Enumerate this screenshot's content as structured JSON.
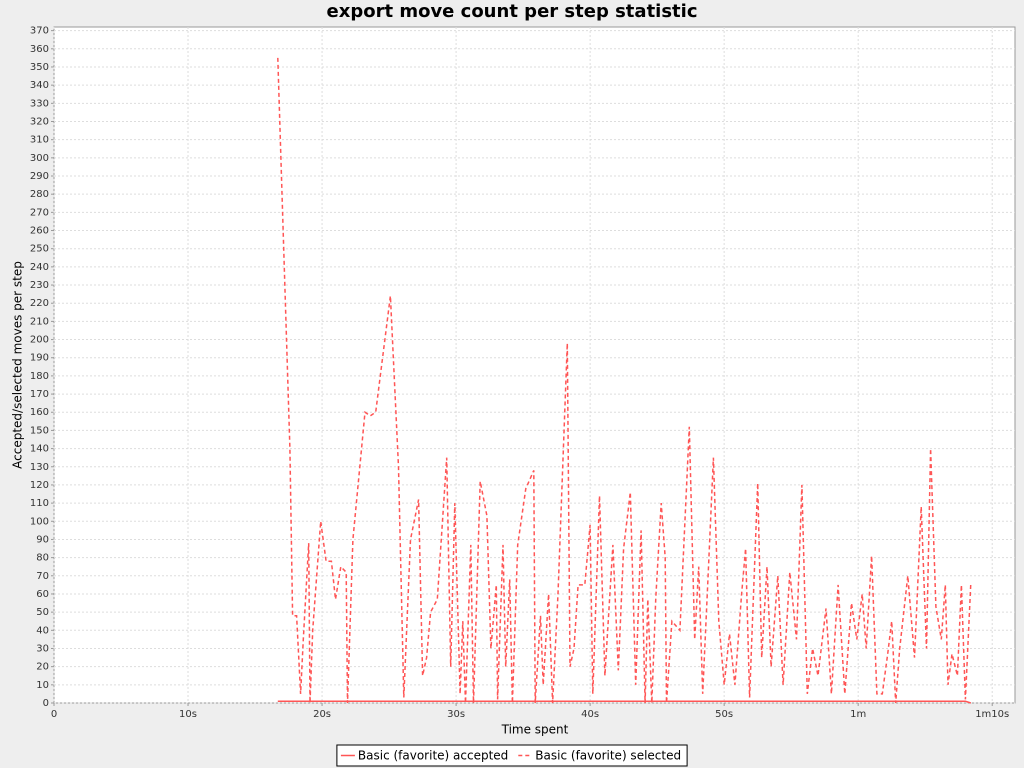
{
  "chart_data": {
    "type": "line",
    "title": "export move count per step statistic",
    "x_label": "Time spent",
    "y_label": "Accepted/selected moves per step",
    "xlim": [
      0,
      71.7
    ],
    "ylim": [
      0,
      372
    ],
    "xticks": [
      0,
      {
        "value": 10,
        "label": "10s"
      },
      {
        "value": 20,
        "label": "20s"
      },
      {
        "value": 30,
        "label": "30s"
      },
      {
        "value": 40,
        "label": "40s"
      },
      {
        "value": 50,
        "label": "50s"
      },
      {
        "value": 60,
        "label": "1m"
      },
      {
        "value": 70,
        "label": "1m10s"
      }
    ],
    "yticks": [
      0,
      10,
      20,
      30,
      40,
      50,
      60,
      70,
      80,
      90,
      100,
      110,
      120,
      130,
      140,
      150,
      160,
      170,
      180,
      190,
      200,
      210,
      220,
      230,
      240,
      250,
      260,
      270,
      280,
      290,
      300,
      310,
      320,
      330,
      340,
      350,
      360,
      370
    ],
    "grid": true,
    "legend": "bottom",
    "series": [
      {
        "name": "Basic (favorite) accepted",
        "color": "#ff5555",
        "line_style": "solid",
        "x": [
          16.7,
          68.0,
          68.4
        ],
        "values": [
          1,
          1,
          0
        ]
      },
      {
        "name": "Basic (favorite) selected",
        "color": "#ff5555",
        "line_style": "dashed",
        "x": [
          16.7,
          17.6,
          17.8,
          18.1,
          18.4,
          18.6,
          19.0,
          19.1,
          19.3,
          19.9,
          20.3,
          20.7,
          21.0,
          21.4,
          21.8,
          21.9,
          22.3,
          23.2,
          23.6,
          24.0,
          25.1,
          25.7,
          26.1,
          26.6,
          27.2,
          27.5,
          27.8,
          28.1,
          28.6,
          29.3,
          29.6,
          29.9,
          30.3,
          30.5,
          30.7,
          31.1,
          31.3,
          31.8,
          32.3,
          32.6,
          33.0,
          33.1,
          33.5,
          33.7,
          34.0,
          34.2,
          34.6,
          35.2,
          35.8,
          35.9,
          36.3,
          36.5,
          36.9,
          37.2,
          37.6,
          38.3,
          38.5,
          38.8,
          39.1,
          39.6,
          40.0,
          40.2,
          40.7,
          41.1,
          41.7,
          42.1,
          42.5,
          43.0,
          43.4,
          43.8,
          44.1,
          44.3,
          44.6,
          44.9,
          45.3,
          45.6,
          45.7,
          46.1,
          46.7,
          47.4,
          47.8,
          48.1,
          48.4,
          48.8,
          49.2,
          49.6,
          50.0,
          50.4,
          50.8,
          51.3,
          51.6,
          51.9,
          52.5,
          52.8,
          53.2,
          53.5,
          54.0,
          54.4,
          54.9,
          55.4,
          55.8,
          56.2,
          56.6,
          57.0,
          57.6,
          58.0,
          58.5,
          59.0,
          59.5,
          59.9,
          60.3,
          60.6,
          61.0,
          61.4,
          61.8,
          62.2,
          62.5,
          62.8,
          63.1,
          63.7,
          64.2,
          64.7,
          65.1,
          65.4,
          65.8,
          66.2,
          66.5,
          66.7,
          67.0,
          67.4,
          67.7,
          68.0,
          68.4
        ],
        "values": [
          355,
          140,
          48,
          48,
          5,
          35,
          88,
          0,
          40,
          100,
          78,
          78,
          57,
          75,
          72,
          0,
          90,
          160,
          158,
          160,
          224,
          130,
          3,
          90,
          112,
          15,
          25,
          50,
          57,
          135,
          20,
          110,
          5,
          45,
          0,
          87,
          0,
          122,
          103,
          30,
          65,
          2,
          87,
          20,
          68,
          0,
          87,
          118,
          128,
          0,
          48,
          10,
          60,
          0,
          60,
          198,
          20,
          30,
          65,
          65,
          98,
          5,
          114,
          15,
          87,
          18,
          85,
          116,
          10,
          95,
          0,
          57,
          0,
          58,
          110,
          80,
          0,
          45,
          40,
          152,
          35,
          75,
          5,
          70,
          135,
          45,
          10,
          38,
          10,
          60,
          85,
          3,
          121,
          25,
          75,
          20,
          70,
          10,
          72,
          35,
          120,
          5,
          30,
          15,
          52,
          5,
          65,
          5,
          55,
          35,
          60,
          30,
          81,
          5,
          5,
          27,
          45,
          0,
          30,
          70,
          25,
          108,
          30,
          140,
          53,
          35,
          65,
          10,
          27,
          15,
          65,
          2,
          66
        ]
      }
    ]
  }
}
